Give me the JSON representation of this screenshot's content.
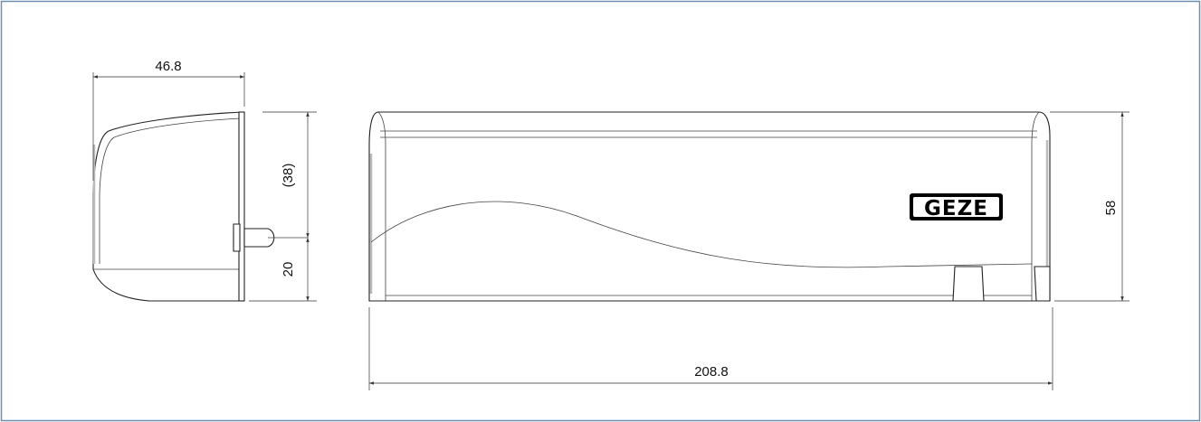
{
  "drawing": {
    "border_color": "#6b8fb0",
    "side_view": {
      "width_label": "46.8",
      "upper_height_label": "(38)",
      "lower_height_label": "20"
    },
    "front_view": {
      "length_label": "208.8",
      "height_label": "58",
      "logo_text": "GEZE"
    }
  }
}
